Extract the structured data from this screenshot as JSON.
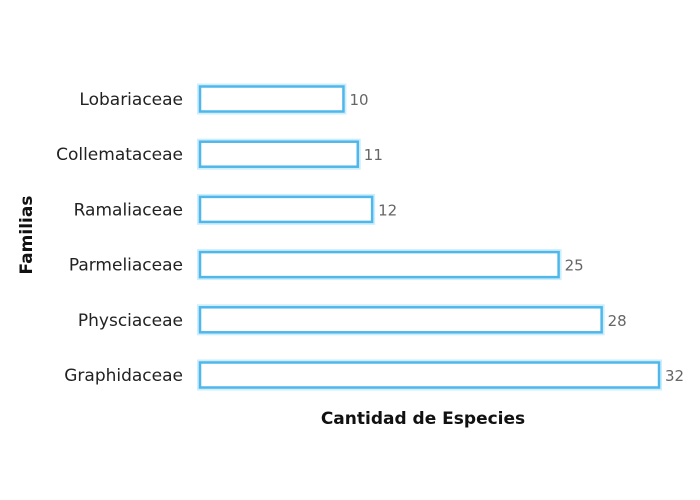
{
  "chart_data": {
    "type": "bar",
    "orientation": "horizontal",
    "categories": [
      "Lobariaceae",
      "Collemataceae",
      "Ramaliaceae",
      "Parmeliaceae",
      "Physciaceae",
      "Graphidaceae"
    ],
    "values": [
      10,
      11,
      12,
      25,
      28,
      32
    ],
    "xlabel": "Cantidad de Especies",
    "ylabel": "Familias",
    "xlim": [
      0,
      32
    ],
    "grid": false,
    "legend": "none",
    "colors": {
      "bar_stroke": "#4fb7ea",
      "bar_glow": "#cdeefd",
      "bar_fill": "#ffffff",
      "value_text": "#666666",
      "label_text": "#222222"
    }
  }
}
